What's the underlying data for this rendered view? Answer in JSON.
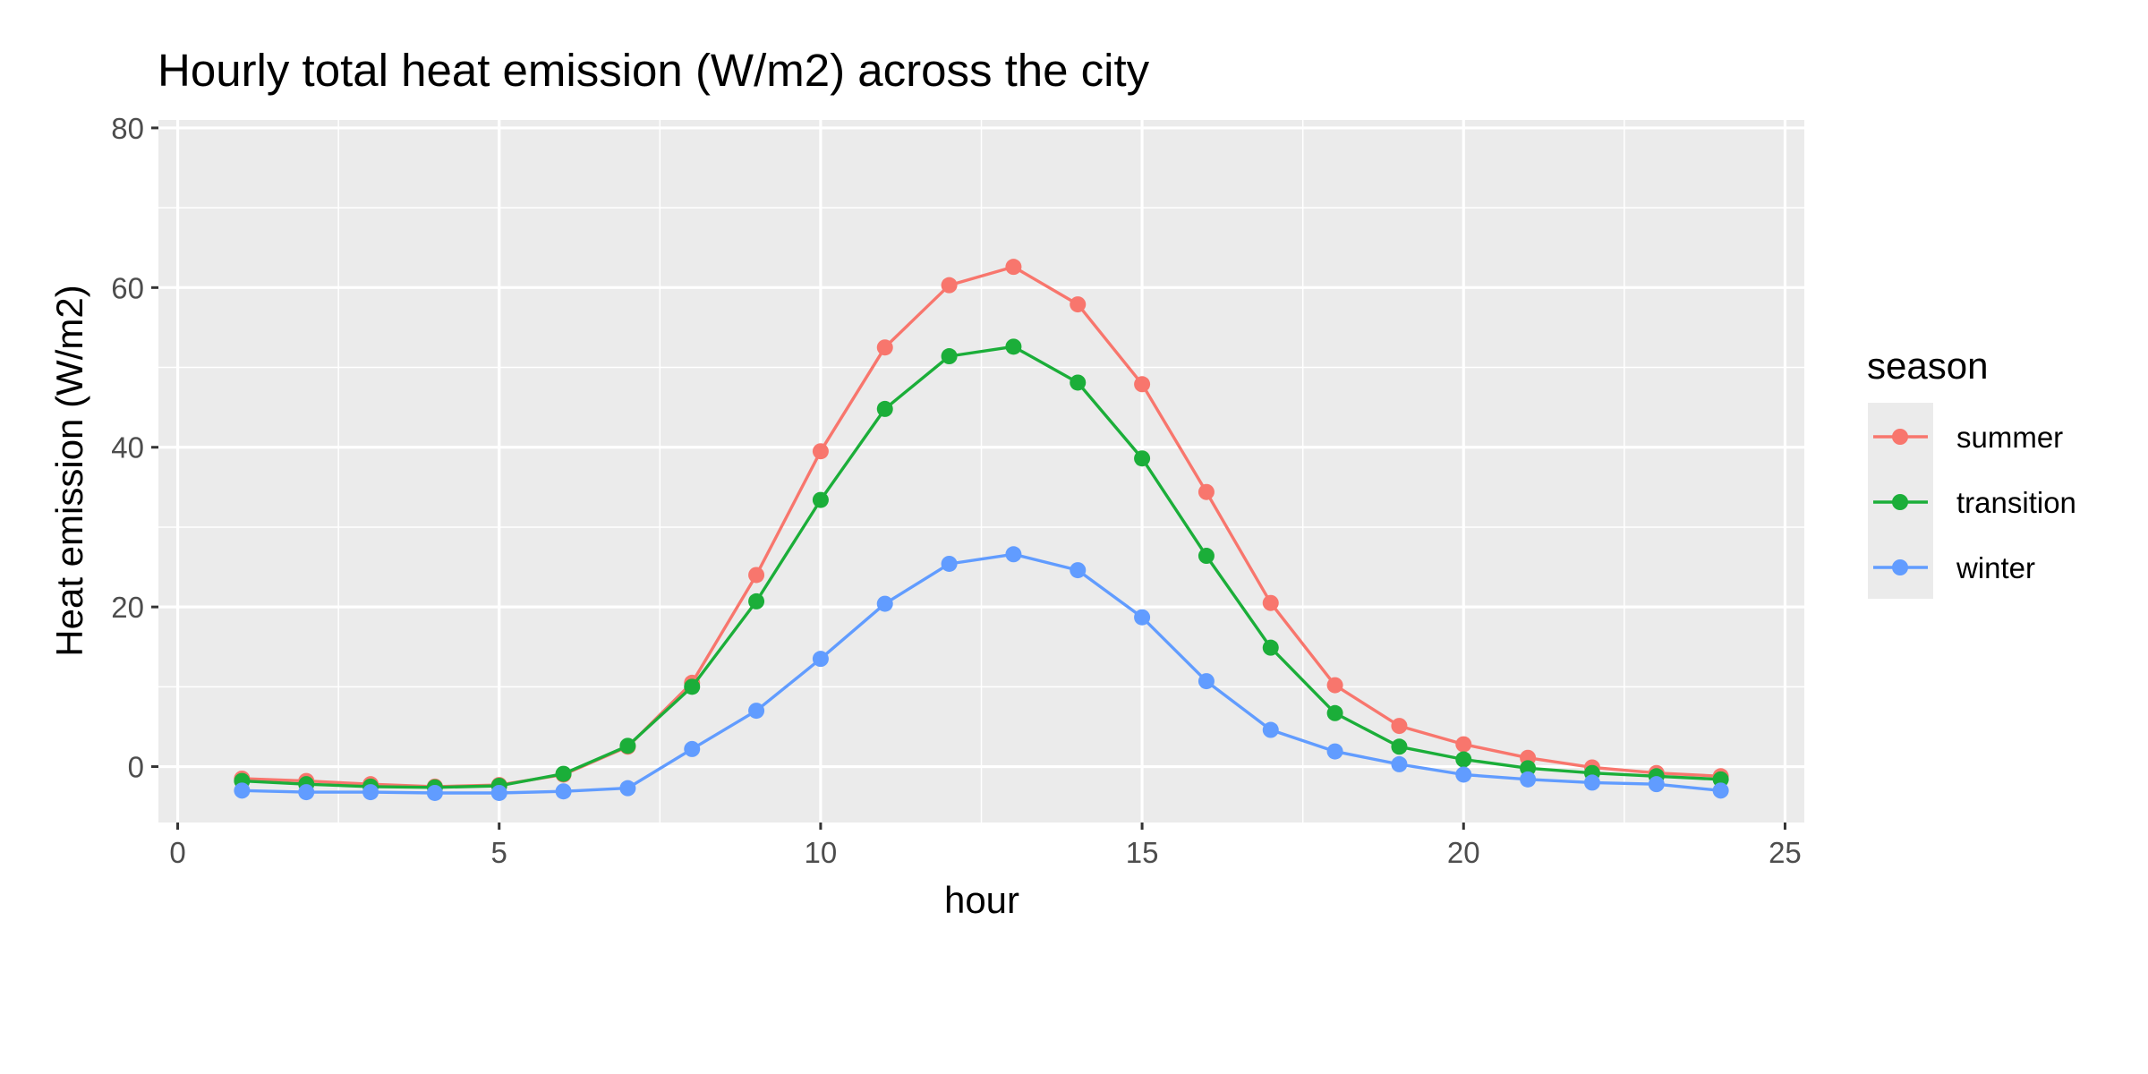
{
  "chart_data": {
    "type": "line",
    "title": "Hourly total heat emission (W/m2) across the city",
    "xlabel": "hour",
    "ylabel": "Heat emission (W/m2)",
    "xlim": [
      -0.3,
      25.3
    ],
    "ylim": [
      -7,
      81
    ],
    "x_ticks": [
      0,
      5,
      10,
      15,
      20,
      25
    ],
    "y_ticks": [
      0,
      20,
      40,
      60,
      80
    ],
    "grid": true,
    "legend_title": "season",
    "legend_position": "right",
    "x": [
      1,
      2,
      3,
      4,
      5,
      6,
      7,
      8,
      9,
      10,
      11,
      12,
      13,
      14,
      15,
      16,
      17,
      18,
      19,
      20,
      21,
      22,
      23,
      24
    ],
    "series": [
      {
        "name": "summer",
        "color": "#F8766D",
        "values": [
          -1.5,
          -1.8,
          -2.2,
          -2.5,
          -2.3,
          -1.0,
          2.5,
          10.5,
          24.0,
          39.5,
          52.5,
          60.3,
          62.6,
          57.9,
          47.9,
          34.4,
          20.5,
          10.2,
          5.1,
          2.8,
          1.1,
          -0.1,
          -0.8,
          -1.2
        ]
      },
      {
        "name": "transition",
        "color": "#1BAE39",
        "values": [
          -1.8,
          -2.2,
          -2.5,
          -2.6,
          -2.4,
          -0.9,
          2.6,
          10.0,
          20.7,
          33.4,
          44.8,
          51.4,
          52.6,
          48.1,
          38.6,
          26.4,
          14.9,
          6.7,
          2.5,
          0.9,
          -0.2,
          -0.8,
          -1.2,
          -1.6
        ]
      },
      {
        "name": "winter",
        "color": "#619CFF",
        "values": [
          -3.0,
          -3.2,
          -3.2,
          -3.3,
          -3.3,
          -3.1,
          -2.7,
          2.2,
          7.0,
          13.5,
          20.4,
          25.4,
          26.6,
          24.6,
          18.7,
          10.7,
          4.6,
          1.9,
          0.3,
          -1.0,
          -1.6,
          -2.0,
          -2.2,
          -3.0
        ]
      }
    ]
  }
}
